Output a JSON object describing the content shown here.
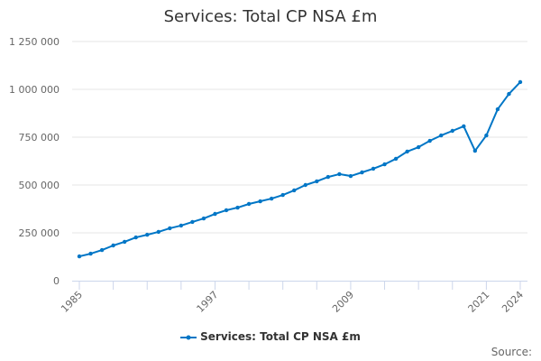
{
  "chart_data": {
    "type": "line",
    "title": "Services: Total CP NSA £m",
    "xlabel": "",
    "ylabel": "",
    "x": [
      1985,
      1986,
      1987,
      1988,
      1989,
      1990,
      1991,
      1992,
      1993,
      1994,
      1995,
      1996,
      1997,
      1998,
      1999,
      2000,
      2001,
      2002,
      2003,
      2004,
      2005,
      2006,
      2007,
      2008,
      2009,
      2010,
      2011,
      2012,
      2013,
      2014,
      2015,
      2016,
      2017,
      2018,
      2019,
      2020,
      2021,
      2022,
      2023,
      2024
    ],
    "series": [
      {
        "name": "Services: Total CP NSA £m",
        "color": "#0076c6",
        "values": [
          127000,
          141000,
          160000,
          184000,
          203000,
          226000,
          240000,
          255000,
          274000,
          288000,
          307000,
          325000,
          349000,
          368000,
          382000,
          401000,
          415000,
          429000,
          448000,
          472000,
          500000,
          519000,
          542000,
          557000,
          547000,
          566000,
          585000,
          608000,
          637000,
          675000,
          698000,
          731000,
          759000,
          783000,
          807000,
          679000,
          759000,
          896000,
          976000,
          1038000
        ]
      }
    ],
    "ylim": [
      0,
      1250000
    ],
    "yticks": [
      0,
      250000,
      500000,
      750000,
      1000000,
      1250000
    ],
    "ytick_labels": [
      "0",
      "250 000",
      "500 000",
      "750 000",
      "1 000 000",
      "1 250 000"
    ],
    "xlim": [
      1985,
      2024
    ],
    "xtick_labels": [
      "1985",
      "1997",
      "2009",
      "2021",
      "2024"
    ],
    "grid": true,
    "legend_position": "bottom"
  },
  "source_label": "Source:"
}
